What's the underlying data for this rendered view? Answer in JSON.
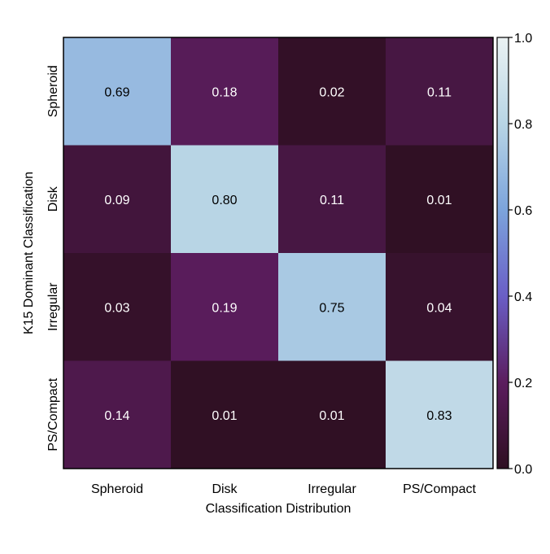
{
  "chart_data": {
    "type": "heatmap",
    "title": "",
    "xlabel": "Classification Distribution",
    "ylabel": "K15 Dominant Classification",
    "x_categories": [
      "Spheroid",
      "Disk",
      "Irregular",
      "PS/Compact"
    ],
    "y_categories": [
      "Spheroid",
      "Disk",
      "Irregular",
      "PS/Compact"
    ],
    "values": [
      [
        0.69,
        0.18,
        0.02,
        0.11
      ],
      [
        0.09,
        0.8,
        0.11,
        0.01
      ],
      [
        0.03,
        0.19,
        0.75,
        0.04
      ],
      [
        0.14,
        0.01,
        0.01,
        0.83
      ]
    ],
    "cell_labels": [
      [
        "0.69",
        "0.18",
        "0.02",
        "0.11"
      ],
      [
        "0.09",
        "0.80",
        "0.11",
        "0.01"
      ],
      [
        "0.03",
        "0.19",
        "0.75",
        "0.04"
      ],
      [
        "0.14",
        "0.01",
        "0.01",
        "0.83"
      ]
    ],
    "colorbar": {
      "range": [
        0.0,
        1.0
      ],
      "ticks": [
        0.0,
        0.2,
        0.4,
        0.6,
        0.8,
        1.0
      ],
      "tick_labels": [
        "0.0",
        "0.2",
        "0.4",
        "0.6",
        "0.8",
        "1.0"
      ],
      "colormap": "twilight-half",
      "color_stops": [
        "#2e0f21",
        "#5b1d5e",
        "#6a5ec6",
        "#7ca4dc",
        "#b8d5e5",
        "#ebf2f3"
      ]
    },
    "grid": false,
    "legend": "colorbar-right"
  }
}
